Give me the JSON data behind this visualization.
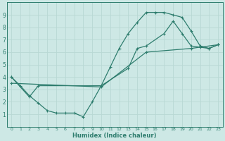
{
  "xlabel": "Humidex (Indice chaleur)",
  "line_color": "#2e7d6e",
  "bg_color": "#cde8e5",
  "grid_color": "#b8d8d4",
  "axis_color": "#2e7d6e",
  "xlim": [
    -0.5,
    23.5
  ],
  "ylim": [
    0,
    10
  ],
  "xticks": [
    0,
    1,
    2,
    3,
    4,
    5,
    6,
    7,
    8,
    9,
    10,
    11,
    12,
    13,
    14,
    15,
    16,
    17,
    18,
    19,
    20,
    21,
    22,
    23
  ],
  "yticks": [
    1,
    2,
    3,
    4,
    5,
    6,
    7,
    8,
    9
  ],
  "line1_x": [
    0,
    1,
    2,
    3,
    4,
    5,
    6,
    7,
    8,
    9,
    10,
    11,
    12,
    13,
    14,
    15,
    16,
    17,
    18,
    19,
    20,
    21,
    22,
    23
  ],
  "line1_y": [
    4.0,
    3.3,
    2.5,
    1.9,
    1.3,
    1.1,
    1.1,
    1.1,
    0.8,
    2.0,
    3.3,
    4.8,
    6.3,
    7.5,
    8.4,
    9.2,
    9.2,
    9.2,
    9.0,
    8.8,
    7.7,
    6.5,
    6.3,
    6.6
  ],
  "line2_x": [
    0,
    2,
    3,
    10,
    13,
    14,
    15,
    17,
    18,
    19,
    20,
    21,
    22,
    23
  ],
  "line2_y": [
    4.0,
    2.4,
    3.3,
    3.3,
    4.7,
    6.3,
    6.5,
    7.5,
    8.5,
    7.5,
    6.5,
    6.4,
    6.3,
    6.6
  ],
  "line3_x": [
    0,
    10,
    15,
    20,
    23
  ],
  "line3_y": [
    3.5,
    3.2,
    6.0,
    6.3,
    6.6
  ]
}
